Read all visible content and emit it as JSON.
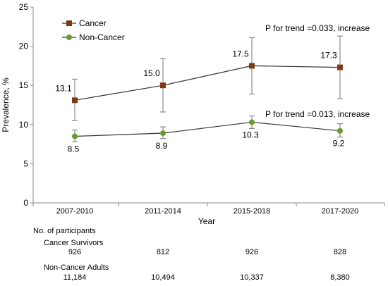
{
  "chart_data": {
    "type": "line",
    "categories": [
      "2007-2010",
      "2011-2014",
      "2015-2018",
      "2017-2020"
    ],
    "xlabel": "Year",
    "ylabel": "Prevalence, %",
    "ylim": [
      0,
      25
    ],
    "yticks": [
      0,
      5,
      10,
      15,
      20,
      25
    ],
    "grid": false,
    "legend_position": "top-left",
    "series": [
      {
        "name": "Cancer",
        "color": "#7f3a14",
        "marker": "square",
        "values": [
          13.1,
          15.0,
          17.5,
          17.3
        ],
        "labels": [
          "13.1",
          "15.0",
          "17.5",
          "17.3"
        ],
        "error_low": [
          10.5,
          11.6,
          13.9,
          13.3
        ],
        "error_high": [
          15.8,
          18.4,
          21.1,
          21.3
        ]
      },
      {
        "name": "Non-Cancer",
        "color": "#6a9a2e",
        "marker": "circle",
        "values": [
          8.5,
          8.9,
          10.3,
          9.2
        ],
        "labels": [
          "8.5",
          "8.9",
          "10.3",
          "9.2"
        ],
        "error_low": [
          7.8,
          8.2,
          9.5,
          8.4
        ],
        "error_high": [
          9.3,
          9.7,
          11.1,
          10.1
        ]
      }
    ],
    "annotations": [
      "P for trend =0.033, increase",
      "P for trend =0.013, increase"
    ]
  },
  "participants": {
    "title": "No. of participants",
    "groups": [
      {
        "label": "Cancer Survivors",
        "counts": [
          "926",
          "812",
          "926",
          "828"
        ]
      },
      {
        "label": "Non-Cancer Adults",
        "counts": [
          "11,184",
          "10,494",
          "10,337",
          "8,380"
        ]
      }
    ]
  }
}
